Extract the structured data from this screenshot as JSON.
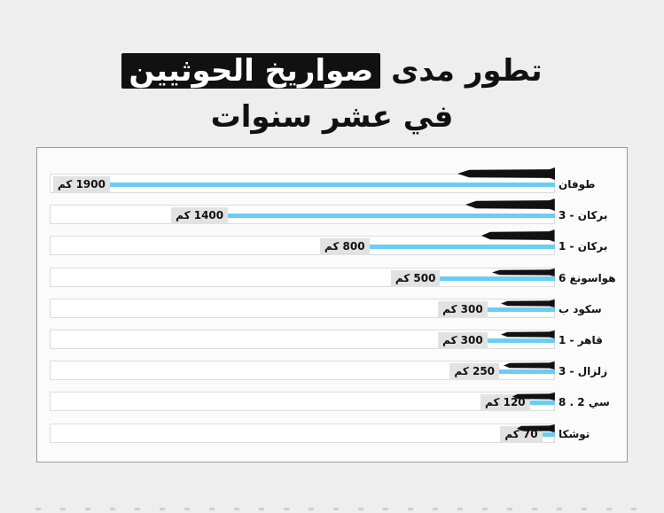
{
  "title": {
    "line1_prefix": "تطور مدى",
    "line1_highlight": "صواريخ الحوثيين",
    "line2": "في عشر سنوات"
  },
  "colors": {
    "bar": "#6ccdf4",
    "highlight_bg": "#111111",
    "label_bg": "#e2e2e2"
  },
  "icons": {
    "missile": "missile-icon"
  },
  "chart_data": {
    "type": "bar",
    "orientation": "horizontal",
    "title": "تطور مدى صواريخ الحوثيين في عشر سنوات",
    "xlabel": "",
    "ylabel": "",
    "unit": "كم",
    "xlim": [
      0,
      1900
    ],
    "categories": [
      "طوفان",
      "بركان - 3",
      "بركان - 1",
      "هواسونغ 6",
      "سكود ب",
      "قاهر - 1",
      "زلزال - 3",
      "سي 2 . 8",
      "توشكا"
    ],
    "values": [
      1900,
      1400,
      800,
      500,
      300,
      300,
      250,
      120,
      70
    ],
    "value_labels": [
      "1900 كم",
      "1400 كم",
      "800 كم",
      "500 كم",
      "300 كم",
      "300 كم",
      "250 كم",
      "120 كم",
      "70 كم"
    ]
  }
}
